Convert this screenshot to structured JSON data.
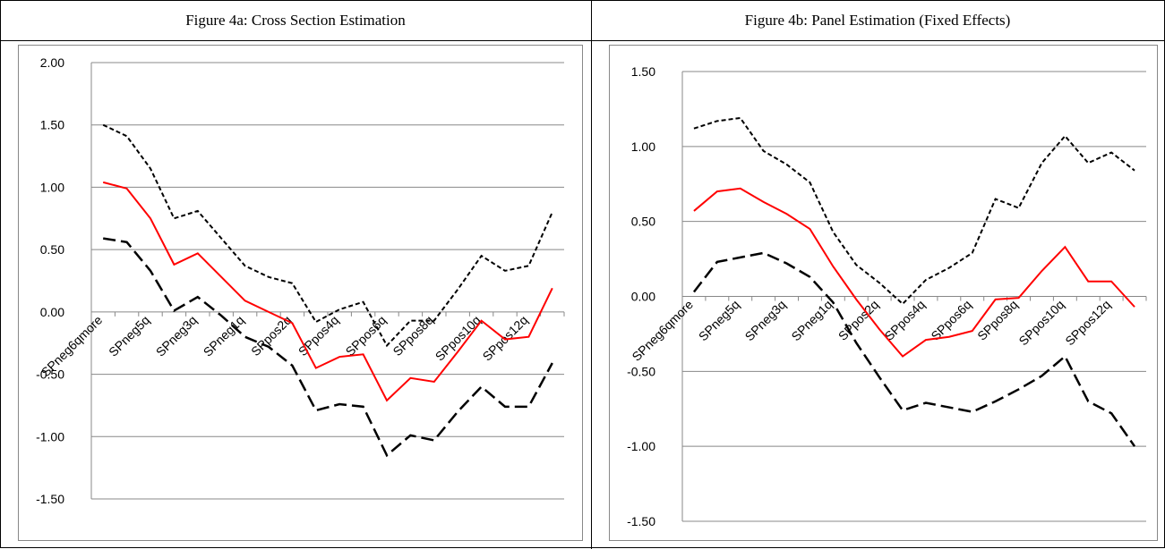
{
  "chart_data": [
    {
      "type": "line",
      "title": "Figure 4a: Cross Section Estimation",
      "categories": [
        "SPneg6qmore",
        null,
        "SPneg5q",
        null,
        "SPneg3q",
        null,
        "SPneg1q",
        null,
        "SPpos2q",
        null,
        "SPpos4q",
        null,
        "SPpos6q",
        null,
        "SPpos8q",
        null,
        "SPpos10q",
        null,
        "SPpos12q",
        null
      ],
      "series": [
        {
          "color": "#ff0000",
          "dash": "solid",
          "values": [
            1.04,
            0.99,
            0.75,
            0.38,
            0.47,
            0.28,
            0.09,
            0.0,
            -0.09,
            -0.45,
            -0.36,
            -0.34,
            -0.71,
            -0.53,
            -0.56,
            -0.32,
            -0.07,
            -0.22,
            -0.2,
            0.19
          ]
        },
        {
          "color": "#000000",
          "dash": "short",
          "values": [
            1.5,
            1.41,
            1.15,
            0.75,
            0.81,
            0.59,
            0.37,
            0.28,
            0.23,
            -0.08,
            0.02,
            0.08,
            -0.27,
            -0.07,
            -0.07,
            0.18,
            0.45,
            0.33,
            0.37,
            0.8
          ]
        },
        {
          "color": "#000000",
          "dash": "long",
          "values": [
            0.59,
            0.56,
            0.33,
            0.01,
            0.12,
            -0.03,
            -0.2,
            -0.28,
            -0.43,
            -0.79,
            -0.74,
            -0.76,
            -1.15,
            -0.99,
            -1.03,
            -0.8,
            -0.6,
            -0.76,
            -0.76,
            -0.41
          ]
        }
      ],
      "ylim": [
        -1.5,
        2
      ],
      "yticks": [
        {
          "value": -1.5,
          "label": "-1.50"
        },
        {
          "value": -1,
          "label": "-1.00"
        },
        {
          "value": -0.5,
          "label": "-0.50"
        },
        {
          "value": 0,
          "label": "0.00"
        },
        {
          "value": 0.5,
          "label": "0.50"
        },
        {
          "value": 1,
          "label": "1.00"
        },
        {
          "value": 1.5,
          "label": "1.50"
        },
        {
          "value": 2,
          "label": "2.00"
        }
      ],
      "grid": true
    },
    {
      "type": "line",
      "title": "Figure 4b: Panel Estimation (Fixed Effects)",
      "categories": [
        "SPneg6qmore",
        null,
        "SPneg5q",
        null,
        "SPneg3q",
        null,
        "SPneg1q",
        null,
        "SPpos2q",
        null,
        "SPpos4q",
        null,
        "SPpos6q",
        null,
        "SPpos8q",
        null,
        "SPpos10q",
        null,
        "SPpos12q",
        null
      ],
      "series": [
        {
          "color": "#ff0000",
          "dash": "solid",
          "values": [
            0.57,
            0.7,
            0.72,
            0.63,
            0.55,
            0.45,
            0.2,
            -0.02,
            -0.22,
            -0.4,
            -0.29,
            -0.27,
            -0.23,
            -0.02,
            -0.01,
            0.17,
            0.33,
            0.1,
            0.1,
            -0.07
          ]
        },
        {
          "color": "#000000",
          "dash": "short",
          "values": [
            1.12,
            1.17,
            1.19,
            0.97,
            0.88,
            0.76,
            0.43,
            0.21,
            0.09,
            -0.05,
            0.11,
            0.19,
            0.29,
            0.65,
            0.59,
            0.89,
            1.07,
            0.89,
            0.96,
            0.84
          ]
        },
        {
          "color": "#000000",
          "dash": "long",
          "values": [
            0.03,
            0.23,
            0.26,
            0.29,
            0.22,
            0.13,
            -0.04,
            -0.31,
            -0.54,
            -0.76,
            -0.71,
            -0.74,
            -0.77,
            -0.7,
            -0.62,
            -0.53,
            -0.4,
            -0.7,
            -0.78,
            -1.0
          ]
        }
      ],
      "ylim": [
        -1.5,
        1.5
      ],
      "yticks": [
        {
          "value": -1.5,
          "label": "-1.50"
        },
        {
          "value": -1,
          "label": "-1.00"
        },
        {
          "value": -0.5,
          "label": "-0.50"
        },
        {
          "value": 0,
          "label": "0.00"
        },
        {
          "value": 0.5,
          "label": "0.50"
        },
        {
          "value": 1,
          "label": "1.00"
        },
        {
          "value": 1.5,
          "label": "1.50"
        }
      ],
      "grid": true
    }
  ]
}
